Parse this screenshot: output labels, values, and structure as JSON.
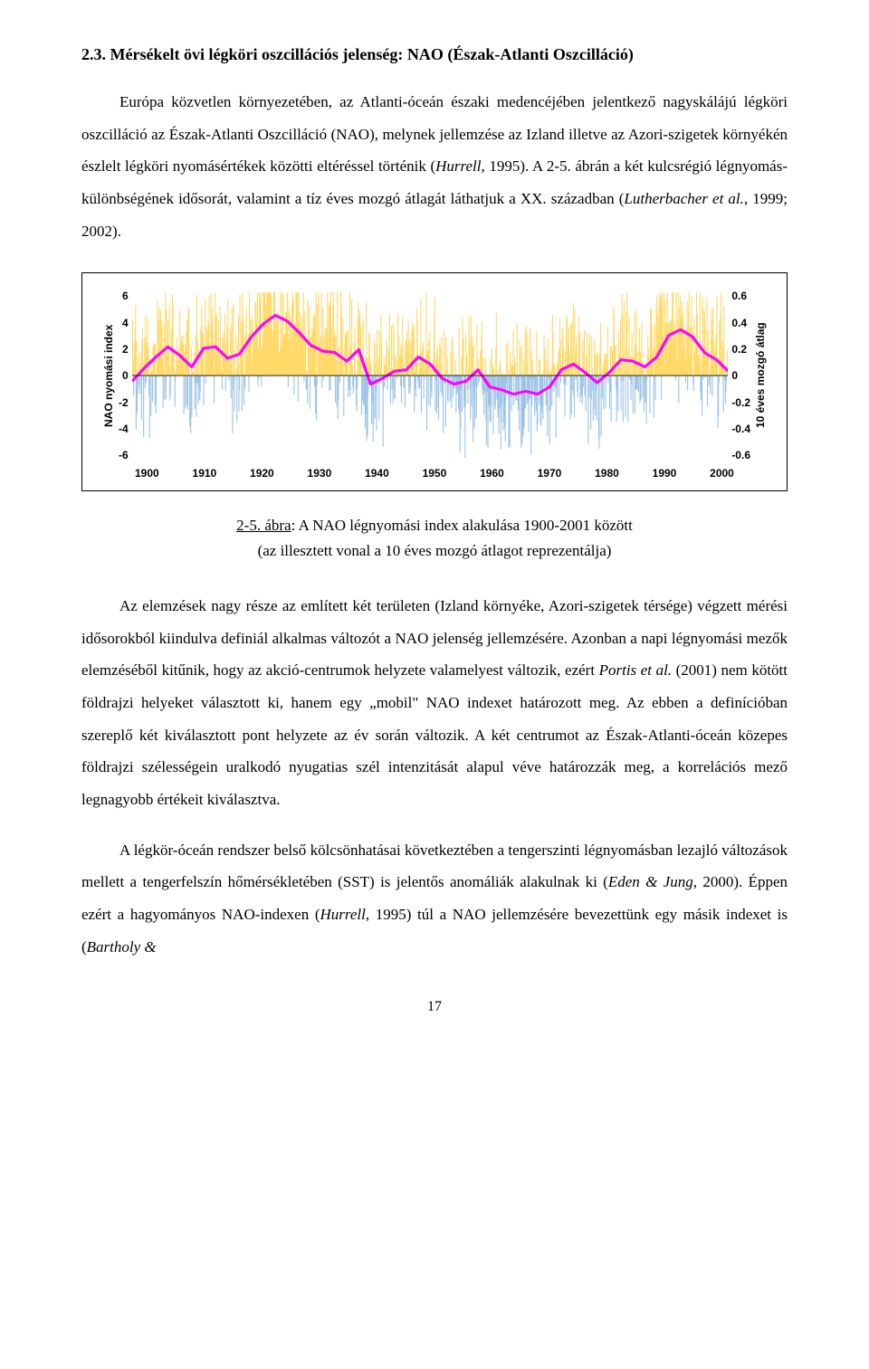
{
  "heading": "2.3. Mérsékelt övi légköri oszcillációs jelenség: NAO (Észak-Atlanti Oszcilláció)",
  "para1_a": "Európa közvetlen környezetében, az Atlanti-óceán északi medencéjében jelentkező nagyskálájú légköri oszcilláció az Észak-Atlanti Oszcilláció (NAO), melynek jellemzése az Izland illetve az Azori-szigetek környékén észlelt légköri nyomásértékek közötti eltéréssel történik (",
  "para1_hurrell": "Hurrell",
  "para1_b": ", 1995). A 2-5. ábrán a két kulcsrégió légnyomás-különbségének idősorát, valamint a tíz éves mozgó átlagát láthatjuk a XX. században (",
  "para1_luther": "Lutherbacher et al.",
  "para1_c": ", 1999; 2002).",
  "chart": {
    "type": "line",
    "y_left_label": "NAO nyomási index",
    "y_right_label": "10 éves mozgó átlag",
    "y_left_ticks": [
      "6",
      "4",
      "2",
      "0",
      "-2",
      "-4",
      "-6"
    ],
    "y_right_ticks": [
      "0.6",
      "0.4",
      "0.2",
      "0",
      "-0.2",
      "-0.4",
      "-0.6"
    ],
    "x_ticks": [
      "1900",
      "1910",
      "1920",
      "1930",
      "1940",
      "1950",
      "1960",
      "1970",
      "1980",
      "1990",
      "2000"
    ],
    "xlim": [
      1900,
      2000
    ],
    "ylim_left": [
      -6,
      6
    ],
    "ylim_right": [
      -0.6,
      0.6
    ],
    "background_color": "#ffffff",
    "series": {
      "monthly": {
        "color_pos": "#ffd966",
        "color_neg": "#9bc2e6",
        "stroke_width": 1.0
      },
      "moving_avg": {
        "color": "#ff00ff",
        "stroke_width": 3.0,
        "values": [
          [
            1900,
            -0.4
          ],
          [
            1902,
            0.5
          ],
          [
            1904,
            1.3
          ],
          [
            1906,
            2.0
          ],
          [
            1908,
            1.4
          ],
          [
            1910,
            0.6
          ],
          [
            1912,
            1.9
          ],
          [
            1914,
            2.0
          ],
          [
            1916,
            1.2
          ],
          [
            1918,
            1.5
          ],
          [
            1920,
            2.7
          ],
          [
            1922,
            3.6
          ],
          [
            1924,
            4.2
          ],
          [
            1926,
            3.8
          ],
          [
            1928,
            3.0
          ],
          [
            1930,
            2.1
          ],
          [
            1932,
            1.7
          ],
          [
            1934,
            1.6
          ],
          [
            1936,
            1.0
          ],
          [
            1938,
            1.8
          ],
          [
            1940,
            -0.6
          ],
          [
            1942,
            -0.2
          ],
          [
            1944,
            0.3
          ],
          [
            1946,
            0.4
          ],
          [
            1948,
            1.3
          ],
          [
            1950,
            0.8
          ],
          [
            1952,
            -0.2
          ],
          [
            1954,
            -0.6
          ],
          [
            1956,
            -0.4
          ],
          [
            1958,
            0.4
          ],
          [
            1960,
            -0.8
          ],
          [
            1962,
            -1.0
          ],
          [
            1964,
            -1.3
          ],
          [
            1966,
            -1.1
          ],
          [
            1968,
            -1.3
          ],
          [
            1970,
            -0.8
          ],
          [
            1972,
            0.4
          ],
          [
            1974,
            0.8
          ],
          [
            1976,
            0.2
          ],
          [
            1978,
            -0.5
          ],
          [
            1980,
            0.2
          ],
          [
            1982,
            1.1
          ],
          [
            1984,
            1.0
          ],
          [
            1986,
            0.6
          ],
          [
            1988,
            1.3
          ],
          [
            1990,
            2.8
          ],
          [
            1992,
            3.2
          ],
          [
            1994,
            2.7
          ],
          [
            1996,
            1.6
          ],
          [
            1998,
            1.1
          ],
          [
            2000,
            0.3
          ]
        ]
      }
    }
  },
  "figcaption_label": "2-5. ábra",
  "figcaption_a": ": A NAO légnyomási index alakulása 1900-2001 között",
  "figcaption_b": "(az illesztett vonal a 10 éves mozgó átlagot reprezentálja)",
  "para2_a": "Az elemzések nagy része az említett két területen (Izland környéke, Azori-szigetek térsége) végzett mérési idősorokból kiindulva definiál alkalmas változót a NAO jelenség jellemzésére. Azonban a napi légnyomási mezők elemzéséből kitűnik, hogy az akció-centrumok helyzete valamelyest változik, ezért ",
  "para2_portis": "Portis et al.",
  "para2_b": " (2001) nem kötött földrajzi helyeket választott ki, hanem egy „mobil\" NAO indexet határozott meg. Az ebben a definícióban szereplő két kiválasztott pont helyzete az év során változik. A két centrumot az Észak-Atlanti-óceán közepes földrajzi szélességein uralkodó nyugatias szél intenzitását alapul véve határozzák meg, a korrelációs mező legnagyobb értékeit kiválasztva.",
  "para3_a": "A légkör-óceán rendszer belső kölcsönhatásai következtében a tengerszinti légnyomásban lezajló változások mellett a tengerfelszín hőmérsékletében (SST) is jelentős anomáliák alakulnak ki (",
  "para3_eden": "Eden & Jung",
  "para3_b": ", 2000). Éppen ezért a hagyományos NAO-indexen (",
  "para3_hurrell": "Hurrell",
  "para3_c": ", 1995) túl a NAO jellemzésére bevezettünk egy másik indexet is (",
  "para3_bartholy": "Bartholy &",
  "page_number": "17"
}
